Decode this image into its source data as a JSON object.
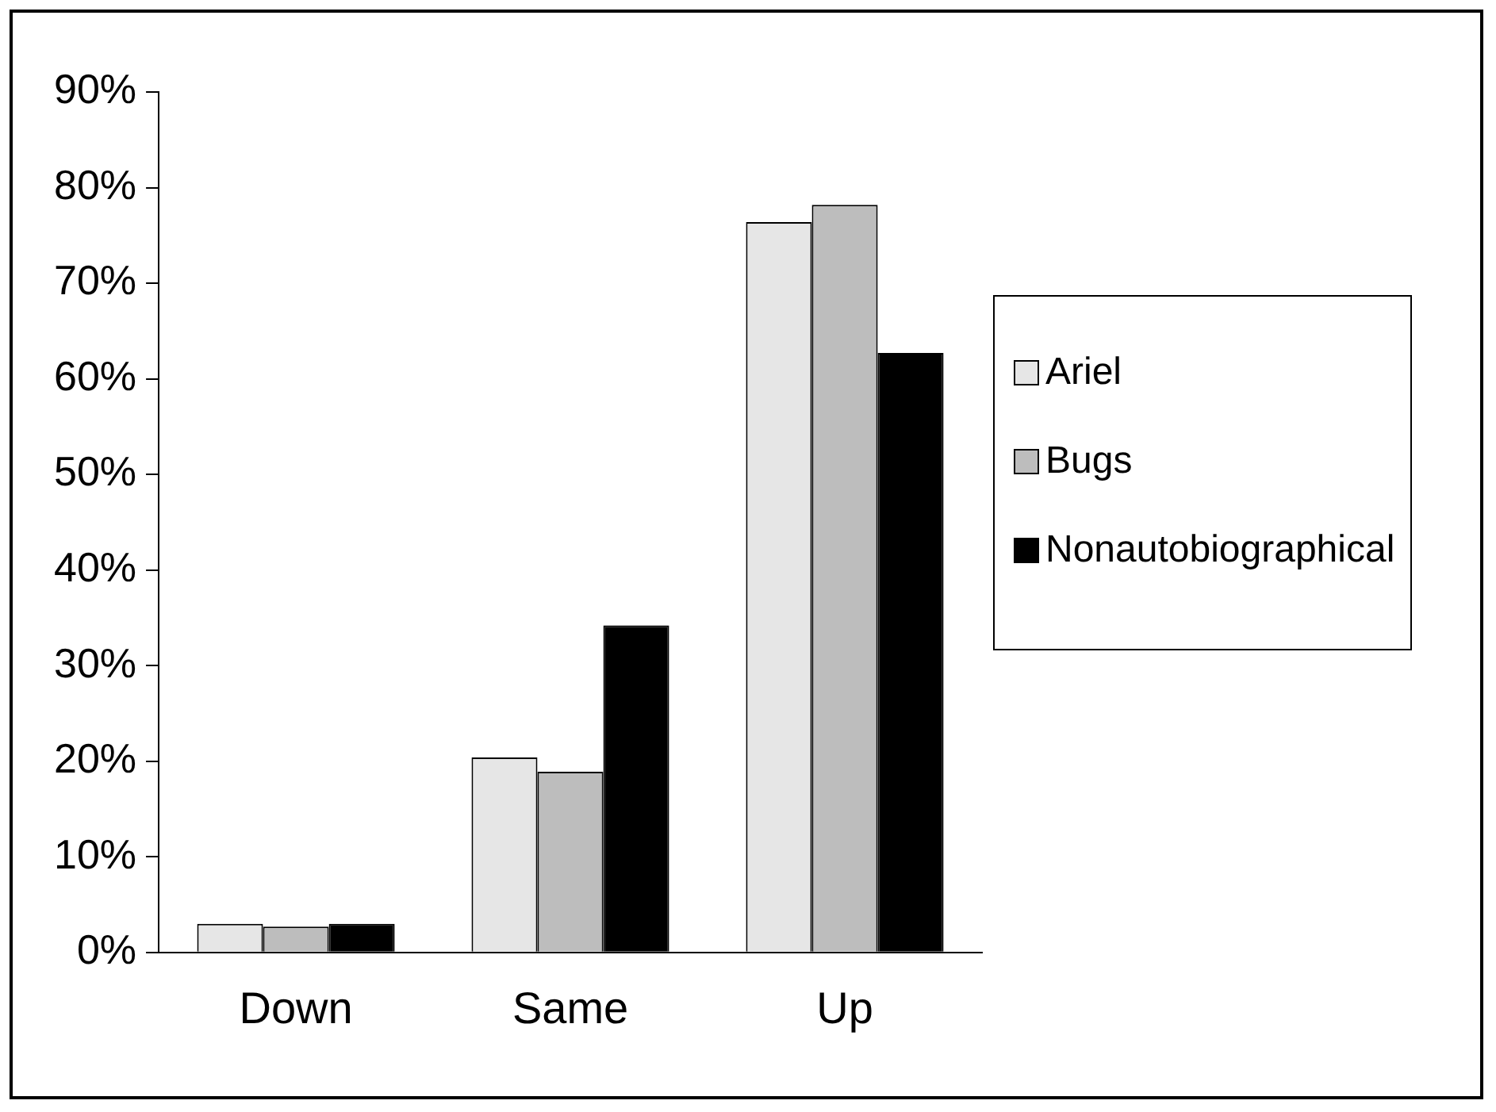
{
  "chart_data": {
    "type": "bar",
    "categories": [
      "Down",
      "Same",
      "Up"
    ],
    "series": [
      {
        "name": "Ariel",
        "color": "#e6e6e6",
        "values": [
          3,
          20.4,
          76.4
        ]
      },
      {
        "name": "Bugs",
        "color": "#bdbdbd",
        "values": [
          2.7,
          18.9,
          78.2
        ]
      },
      {
        "name": "Nonautobiographical",
        "color": "#000000",
        "values": [
          3,
          34.2,
          62.7
        ]
      }
    ],
    "ylim": [
      0,
      90
    ],
    "yticks": [
      {
        "value": 0,
        "label": "0%"
      },
      {
        "value": 10,
        "label": "10%"
      },
      {
        "value": 20,
        "label": "20%"
      },
      {
        "value": 30,
        "label": "30%"
      },
      {
        "value": 40,
        "label": "40%"
      },
      {
        "value": 50,
        "label": "50%"
      },
      {
        "value": 60,
        "label": "60%"
      },
      {
        "value": 70,
        "label": "70%"
      },
      {
        "value": 80,
        "label": "80%"
      },
      {
        "value": 90,
        "label": "90%"
      }
    ],
    "grid": false,
    "legend": "right"
  }
}
